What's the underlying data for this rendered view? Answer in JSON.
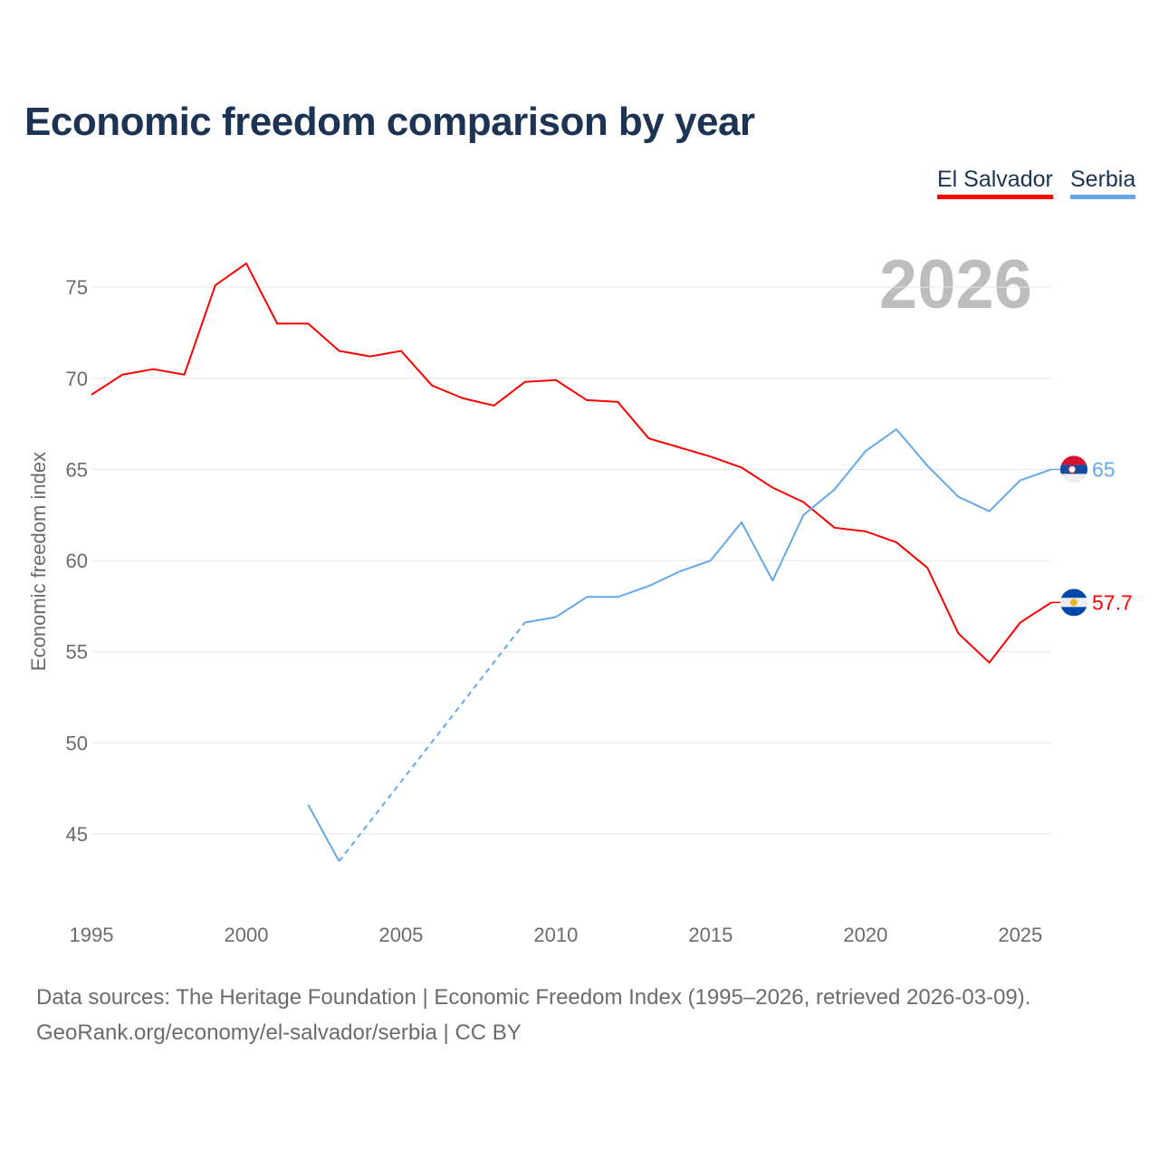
{
  "title": "Economic freedom comparison by year",
  "legend": [
    {
      "name": "El Salvador",
      "color": "#ff0000"
    },
    {
      "name": "Serbia",
      "color": "#62a8ea"
    }
  ],
  "footer": {
    "sources": "Data sources: The Heritage Foundation | Economic Freedom Index (1995–2026, retrieved 2026-03-09).",
    "url": "GeoRank.org/economy/el-salvador/serbia | CC BY"
  },
  "chart_data": {
    "type": "line",
    "title": "Economic freedom comparison by year",
    "ylabel": "Economic freedom index",
    "xlabel": "",
    "year_label": "2026",
    "xlim": [
      1995,
      2026
    ],
    "ylim": [
      41,
      78
    ],
    "xticks": [
      1995,
      2000,
      2005,
      2010,
      2015,
      2020,
      2025
    ],
    "yticks": [
      45,
      50,
      55,
      60,
      65,
      70,
      75
    ],
    "grid": true,
    "legend_placement": "top-right",
    "series": [
      {
        "name": "El Salvador",
        "color": "#ff0000",
        "end_label": "57.7",
        "flag": "el-salvador",
        "x": [
          1995,
          1996,
          1997,
          1998,
          1999,
          2000,
          2001,
          2002,
          2003,
          2004,
          2005,
          2006,
          2007,
          2008,
          2009,
          2010,
          2011,
          2012,
          2013,
          2014,
          2015,
          2016,
          2017,
          2018,
          2019,
          2020,
          2021,
          2022,
          2023,
          2024,
          2025,
          2026
        ],
        "y": [
          69.1,
          70.2,
          70.5,
          70.2,
          75.1,
          76.3,
          73.0,
          73.0,
          71.5,
          71.2,
          71.5,
          69.6,
          68.9,
          68.5,
          69.8,
          69.9,
          68.8,
          68.7,
          66.7,
          66.2,
          65.7,
          65.1,
          64.0,
          63.2,
          61.8,
          61.6,
          61.0,
          59.6,
          56.0,
          54.4,
          56.6,
          57.7
        ]
      },
      {
        "name": "Serbia",
        "color": "#62a8ea",
        "end_label": "65",
        "flag": "serbia",
        "x": [
          2002,
          2003,
          2009,
          2010,
          2011,
          2012,
          2013,
          2014,
          2015,
          2016,
          2017,
          2018,
          2019,
          2020,
          2021,
          2022,
          2023,
          2024,
          2025,
          2026
        ],
        "y": [
          46.6,
          43.5,
          56.6,
          56.9,
          58.0,
          58.0,
          58.6,
          59.4,
          60.0,
          62.1,
          58.9,
          62.5,
          63.9,
          66.0,
          67.2,
          65.2,
          63.5,
          62.7,
          64.4,
          65.0
        ]
      }
    ]
  }
}
